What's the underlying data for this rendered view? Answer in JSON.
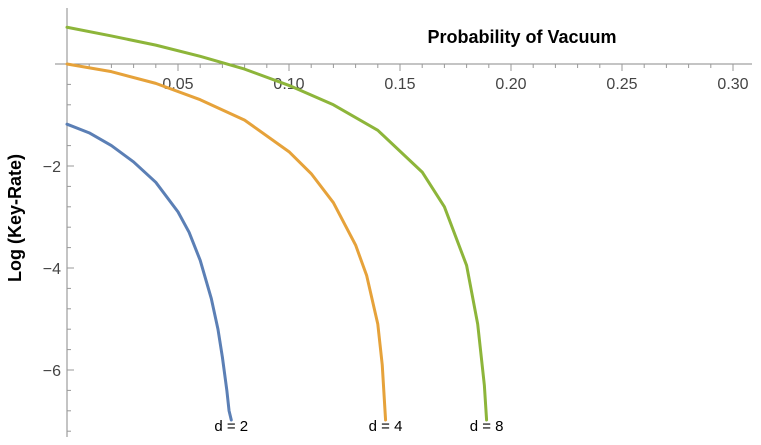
{
  "chart_data": {
    "type": "line",
    "title": "",
    "xlabel": "Probability of Vacuum",
    "ylabel": "Log (Key-Rate)",
    "xlim": [
      0,
      0.31
    ],
    "ylim": [
      -7.3,
      0.7
    ],
    "x_ticks": [
      0.05,
      0.1,
      0.15,
      0.2,
      0.25,
      0.3
    ],
    "x_tick_labels": [
      "0.05",
      "0.10",
      "0.15",
      "0.20",
      "0.25",
      "0.30"
    ],
    "y_ticks": [
      -2,
      -4,
      -6
    ],
    "y_tick_labels": [
      "−2",
      "−4",
      "−6"
    ],
    "grid": false,
    "legend": "none",
    "series": [
      {
        "name": "d = 2",
        "color": "#5b7fb5",
        "x": [
          0,
          0.01,
          0.02,
          0.03,
          0.04,
          0.05,
          0.055,
          0.06,
          0.065,
          0.068,
          0.07,
          0.072,
          0.073,
          0.074
        ],
        "y": [
          -1.18,
          -1.35,
          -1.6,
          -1.92,
          -2.32,
          -2.9,
          -3.3,
          -3.85,
          -4.6,
          -5.2,
          -5.75,
          -6.4,
          -6.8,
          -6.98
        ]
      },
      {
        "name": "d = 4",
        "color": "#e6a23a",
        "x": [
          0,
          0.02,
          0.04,
          0.06,
          0.08,
          0.1,
          0.11,
          0.12,
          0.13,
          0.135,
          0.14,
          0.142,
          0.1435
        ],
        "y": [
          0.0,
          -0.15,
          -0.38,
          -0.7,
          -1.1,
          -1.72,
          -2.15,
          -2.72,
          -3.55,
          -4.15,
          -5.1,
          -5.9,
          -6.98
        ]
      },
      {
        "name": "d = 8",
        "color": "#8db53a",
        "x": [
          0,
          0.02,
          0.04,
          0.06,
          0.08,
          0.1,
          0.12,
          0.14,
          0.16,
          0.17,
          0.18,
          0.185,
          0.188,
          0.189
        ],
        "y": [
          0.72,
          0.55,
          0.37,
          0.15,
          -0.1,
          -0.42,
          -0.8,
          -1.3,
          -2.12,
          -2.8,
          -3.95,
          -5.1,
          -6.3,
          -6.98
        ]
      }
    ]
  }
}
